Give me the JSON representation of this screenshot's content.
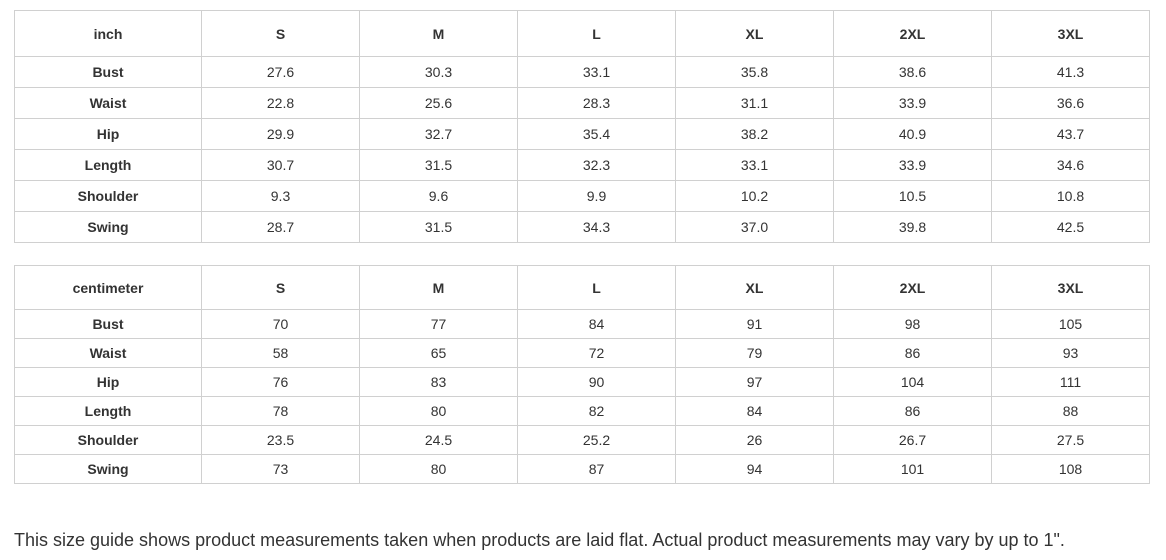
{
  "sizes": [
    "S",
    "M",
    "L",
    "XL",
    "2XL",
    "3XL"
  ],
  "tables": [
    {
      "unit": "inch",
      "rows": [
        {
          "label": "Bust",
          "values": [
            "27.6",
            "30.3",
            "33.1",
            "35.8",
            "38.6",
            "41.3"
          ]
        },
        {
          "label": "Waist",
          "values": [
            "22.8",
            "25.6",
            "28.3",
            "31.1",
            "33.9",
            "36.6"
          ]
        },
        {
          "label": "Hip",
          "values": [
            "29.9",
            "32.7",
            "35.4",
            "38.2",
            "40.9",
            "43.7"
          ]
        },
        {
          "label": "Length",
          "values": [
            "30.7",
            "31.5",
            "32.3",
            "33.1",
            "33.9",
            "34.6"
          ]
        },
        {
          "label": "Shoulder",
          "values": [
            "9.3",
            "9.6",
            "9.9",
            "10.2",
            "10.5",
            "10.8"
          ]
        },
        {
          "label": "Swing",
          "values": [
            "28.7",
            "31.5",
            "34.3",
            "37.0",
            "39.8",
            "42.5"
          ]
        }
      ]
    },
    {
      "unit": "centimeter",
      "rows": [
        {
          "label": "Bust",
          "values": [
            "70",
            "77",
            "84",
            "91",
            "98",
            "105"
          ]
        },
        {
          "label": "Waist",
          "values": [
            "58",
            "65",
            "72",
            "79",
            "86",
            "93"
          ]
        },
        {
          "label": "Hip",
          "values": [
            "76",
            "83",
            "90",
            "97",
            "104",
            "111"
          ]
        },
        {
          "label": "Length",
          "values": [
            "78",
            "80",
            "82",
            "84",
            "86",
            "88"
          ]
        },
        {
          "label": "Shoulder",
          "values": [
            "23.5",
            "24.5",
            "25.2",
            "26",
            "26.7",
            "27.5"
          ]
        },
        {
          "label": "Swing",
          "values": [
            "73",
            "80",
            "87",
            "94",
            "101",
            "108"
          ]
        }
      ]
    }
  ],
  "note": "This size guide shows product measurements taken when products are laid flat. Actual product measurements may vary by up to 1\"."
}
